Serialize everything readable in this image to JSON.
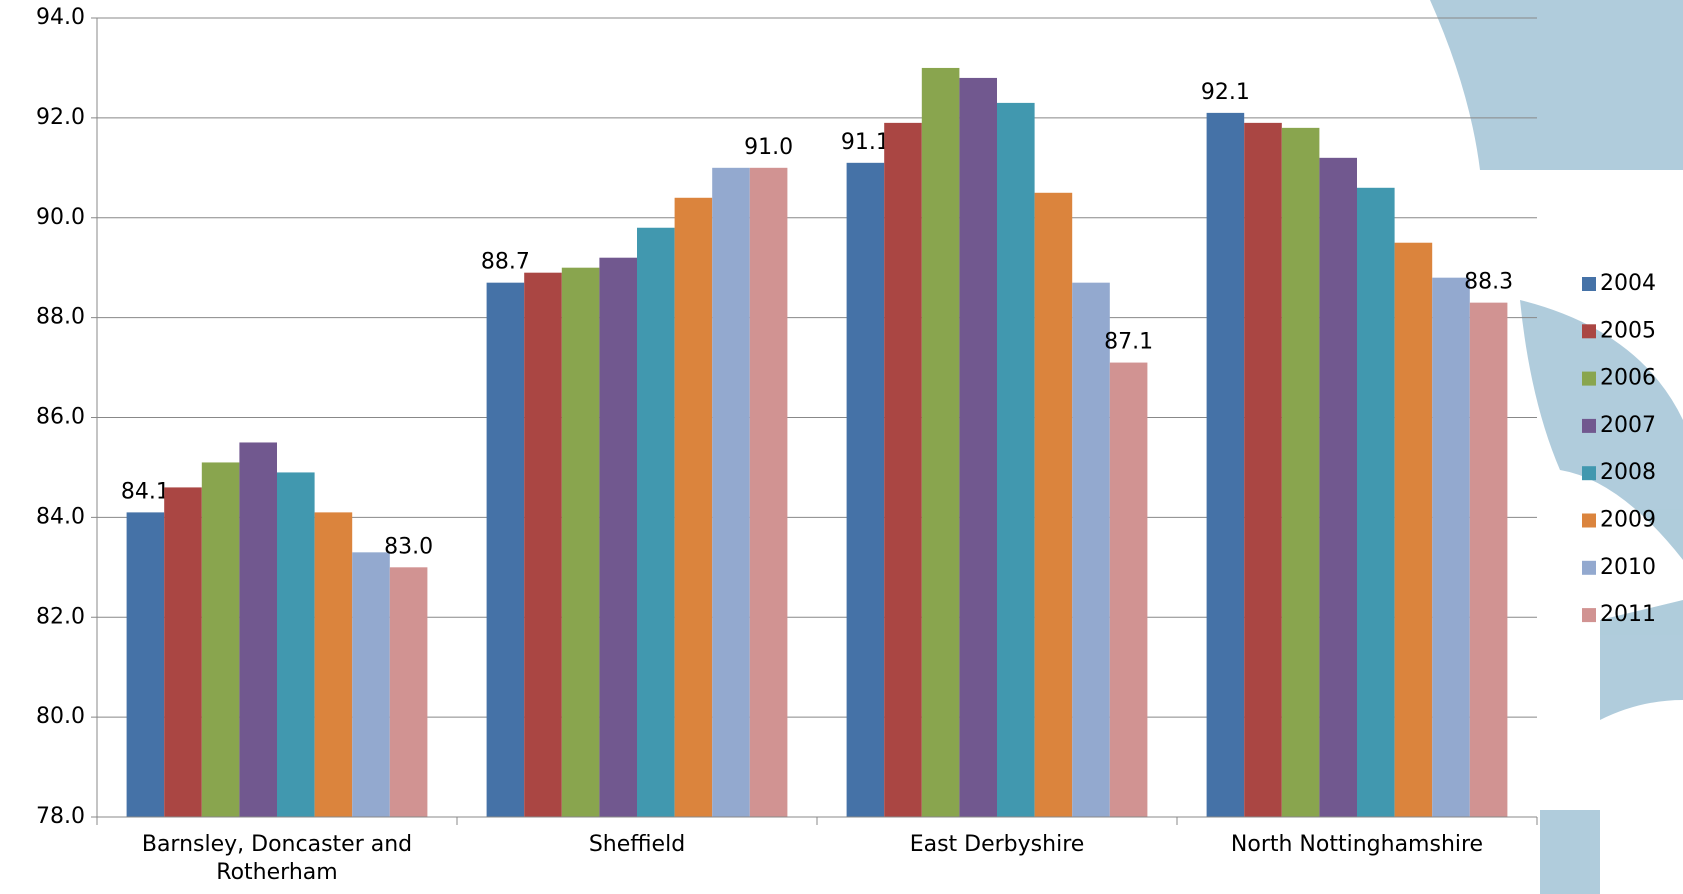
{
  "chart_data": {
    "type": "bar",
    "categories": [
      "Barnsley, Doncaster and Rotherham",
      "Sheffield",
      "East Derbyshire",
      "North Nottinghamshire"
    ],
    "series": [
      {
        "name": "2004",
        "color": "#4572a7",
        "values": [
          84.1,
          88.7,
          91.1,
          92.1
        ],
        "value_labels": [
          "84.1",
          "88.7",
          "91.1",
          "92.1"
        ]
      },
      {
        "name": "2005",
        "color": "#aa4643",
        "values": [
          84.6,
          88.9,
          91.9,
          91.9
        ]
      },
      {
        "name": "2006",
        "color": "#89a54e",
        "values": [
          85.1,
          89.0,
          93.0,
          91.8
        ]
      },
      {
        "name": "2007",
        "color": "#71588f",
        "values": [
          85.5,
          89.2,
          92.8,
          91.2
        ]
      },
      {
        "name": "2008",
        "color": "#4198af",
        "values": [
          84.9,
          89.8,
          92.3,
          90.6
        ]
      },
      {
        "name": "2009",
        "color": "#db843d",
        "values": [
          84.1,
          90.4,
          90.5,
          89.5
        ]
      },
      {
        "name": "2010",
        "color": "#93a9cf",
        "values": [
          83.3,
          91.0,
          88.7,
          88.8
        ]
      },
      {
        "name": "2011",
        "color": "#d19392",
        "values": [
          83.0,
          91.0,
          87.1,
          88.3
        ],
        "value_labels": [
          "83.0",
          "91.0",
          "87.1",
          "88.3"
        ]
      }
    ],
    "ylim": [
      78,
      94
    ],
    "yticks": [
      {
        "value": 78,
        "label": "78.0"
      },
      {
        "value": 80,
        "label": "80.0"
      },
      {
        "value": 82,
        "label": "82.0"
      },
      {
        "value": 84,
        "label": "84.0"
      },
      {
        "value": 86,
        "label": "86.0"
      },
      {
        "value": 88,
        "label": "88.0"
      },
      {
        "value": 90,
        "label": "90.0"
      },
      {
        "value": 92,
        "label": "92.0"
      },
      {
        "value": 94,
        "label": "94.0"
      }
    ],
    "grid": true,
    "legend": "right"
  }
}
